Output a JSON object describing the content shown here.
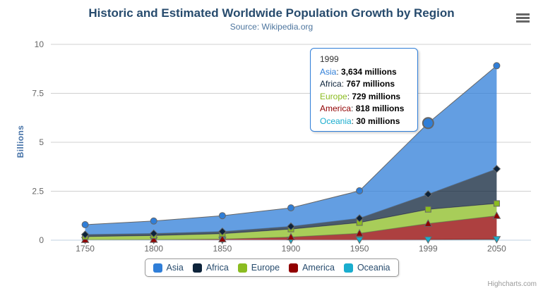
{
  "chart_data": {
    "type": "area",
    "stacked": true,
    "title": "Historic and Estimated Worldwide Population Growth by Region",
    "subtitle": "Source: Wikipedia.org",
    "ylabel": "Billions",
    "values_unit": "millions",
    "categories": [
      "1750",
      "1800",
      "1850",
      "1900",
      "1950",
      "1999",
      "2050"
    ],
    "yticks": [
      0,
      2.5,
      5,
      7.5,
      10
    ],
    "ylim": [
      0,
      10
    ],
    "grid": true,
    "legend_position": "bottom",
    "series": [
      {
        "name": "Asia",
        "color": "#2f7ed8",
        "marker": "circle",
        "values": [
          502,
          635,
          809,
          947,
          1402,
          3634,
          5268
        ]
      },
      {
        "name": "Africa",
        "color": "#0d233a",
        "marker": "diamond",
        "values": [
          106,
          107,
          111,
          133,
          221,
          767,
          1766
        ]
      },
      {
        "name": "Europe",
        "color": "#8bbc21",
        "marker": "square",
        "values": [
          163,
          203,
          276,
          408,
          547,
          729,
          628
        ]
      },
      {
        "name": "America",
        "color": "#910000",
        "marker": "triangle",
        "values": [
          18,
          31,
          54,
          156,
          339,
          818,
          1201
        ]
      },
      {
        "name": "Oceania",
        "color": "#1aadce",
        "marker": "triangle-down",
        "values": [
          2,
          2,
          2,
          6,
          13,
          30,
          46
        ]
      }
    ],
    "line_color": "#666666",
    "grid_color": "#d0d0d0",
    "axis_line_color": "#c0d0e0",
    "fill_opacity": 0.75
  },
  "tooltip": {
    "header": "1999",
    "category_index": 5,
    "hovered_series": "Asia",
    "rows": [
      {
        "name": "Asia",
        "color": "#2f7ed8",
        "value": "3,634 millions"
      },
      {
        "name": "Africa",
        "color": "#0d233a",
        "value": "767 millions"
      },
      {
        "name": "Europe",
        "color": "#8bbc21",
        "value": "729 millions"
      },
      {
        "name": "America",
        "color": "#910000",
        "value": "818 millions"
      },
      {
        "name": "Oceania",
        "color": "#1aadce",
        "value": "30 millions"
      }
    ]
  },
  "credits": "Highcharts.com",
  "menu_icon": "hamburger-icon"
}
